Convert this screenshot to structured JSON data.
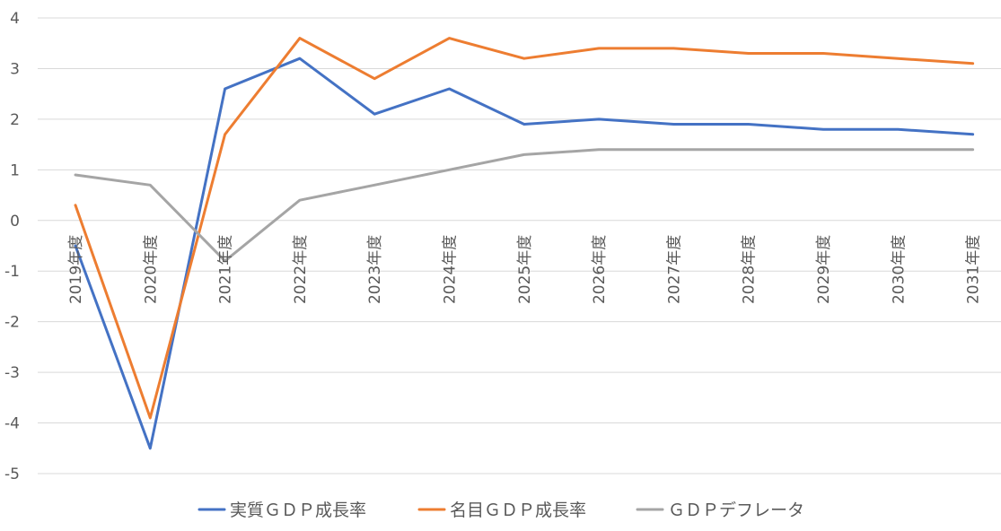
{
  "chart_data": {
    "type": "line",
    "title": "",
    "xlabel": "",
    "ylabel": "",
    "categories": [
      "2019年度",
      "2020年度",
      "2021年度",
      "2022年度",
      "2023年度",
      "2024年度",
      "2025年度",
      "2026年度",
      "2027年度",
      "2028年度",
      "2029年度",
      "2030年度",
      "2031年度"
    ],
    "ylim": [
      -5,
      4
    ],
    "yticks": [
      4,
      3,
      2,
      1,
      0,
      -1,
      -2,
      -3,
      -4,
      -5
    ],
    "grid": true,
    "legend_position": "bottom",
    "series": [
      {
        "name": "実質ＧＤＰ成長率",
        "color": "#4472C4",
        "values": [
          -0.5,
          -4.5,
          2.6,
          3.2,
          2.1,
          2.6,
          1.9,
          2.0,
          1.9,
          1.9,
          1.8,
          1.8,
          1.7
        ]
      },
      {
        "name": "名目ＧＤＰ成長率",
        "color": "#ED7D31",
        "values": [
          0.3,
          -3.9,
          1.7,
          3.6,
          2.8,
          3.6,
          3.2,
          3.4,
          3.4,
          3.3,
          3.3,
          3.2,
          3.1
        ]
      },
      {
        "name": "ＧＤＰデフレータ",
        "color": "#A5A5A5",
        "values": [
          0.9,
          0.7,
          -0.8,
          0.4,
          0.7,
          1.0,
          1.3,
          1.4,
          1.4,
          1.4,
          1.4,
          1.4,
          1.4
        ]
      }
    ]
  }
}
